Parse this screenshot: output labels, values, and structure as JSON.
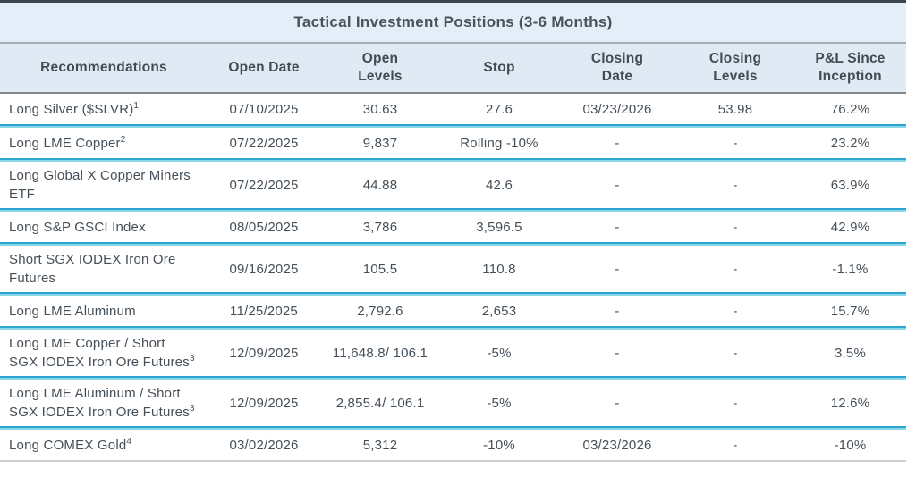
{
  "title": "Tactical Investment Positions (3-6 Months)",
  "colors": {
    "top_bar": "#3d454d",
    "band_background": "#e4eef8",
    "header_background": "#dfeaf4",
    "separator_top": "#2aa7d1",
    "separator_bottom": "#8ad7eb",
    "text": "#434e57",
    "gray_line": "#a7acb1"
  },
  "table": {
    "columns": [
      "Recommendations",
      "Open Date",
      "Open Levels",
      "Stop",
      "Closing Date",
      "Closing Levels",
      "P&L Since Inception"
    ],
    "rows": [
      {
        "recommendation": "Long Silver ($SLVR)",
        "footnote": "1",
        "open_date": "07/10/2025",
        "open_levels": "30.63",
        "stop": "27.6",
        "closing_date": "03/23/2026",
        "closing_levels": "53.98",
        "pnl": "76.2%"
      },
      {
        "recommendation": "Long LME Copper",
        "footnote": "2",
        "open_date": "07/22/2025",
        "open_levels": "9,837",
        "stop": "Rolling -10%",
        "closing_date": "-",
        "closing_levels": "-",
        "pnl": "23.2%"
      },
      {
        "recommendation": "Long Global X Copper Miners ETF",
        "footnote": "",
        "open_date": "07/22/2025",
        "open_levels": "44.88",
        "stop": "42.6",
        "closing_date": "-",
        "closing_levels": "-",
        "pnl": "63.9%"
      },
      {
        "recommendation": "Long S&P GSCI Index",
        "footnote": "",
        "open_date": "08/05/2025",
        "open_levels": "3,786",
        "stop": "3,596.5",
        "closing_date": "-",
        "closing_levels": "-",
        "pnl": "42.9%"
      },
      {
        "recommendation": "Short SGX IODEX Iron Ore Futures",
        "footnote": "",
        "open_date": "09/16/2025",
        "open_levels": "105.5",
        "stop": "110.8",
        "closing_date": "-",
        "closing_levels": "-",
        "pnl": "-1.1%"
      },
      {
        "recommendation": "Long LME Aluminum",
        "footnote": "",
        "open_date": "11/25/2025",
        "open_levels": "2,792.6",
        "stop": "2,653",
        "closing_date": "-",
        "closing_levels": "-",
        "pnl": "15.7%"
      },
      {
        "recommendation": "Long LME Copper / Short SGX IODEX Iron Ore Futures",
        "footnote": "3",
        "open_date": "12/09/2025",
        "open_levels": "11,648.8/ 106.1",
        "stop": "-5%",
        "closing_date": "-",
        "closing_levels": "-",
        "pnl": "3.5%"
      },
      {
        "recommendation": "Long LME Aluminum / Short SGX IODEX Iron Ore Futures",
        "footnote": "3",
        "open_date": "12/09/2025",
        "open_levels": "2,855.4/ 106.1",
        "stop": "-5%",
        "closing_date": "-",
        "closing_levels": "-",
        "pnl": "12.6%"
      },
      {
        "recommendation": "Long COMEX Gold",
        "footnote": "4",
        "open_date": "03/02/2026",
        "open_levels": "5,312",
        "stop": "-10%",
        "closing_date": "03/23/2026",
        "closing_levels": "-",
        "pnl": "-10%"
      }
    ]
  }
}
